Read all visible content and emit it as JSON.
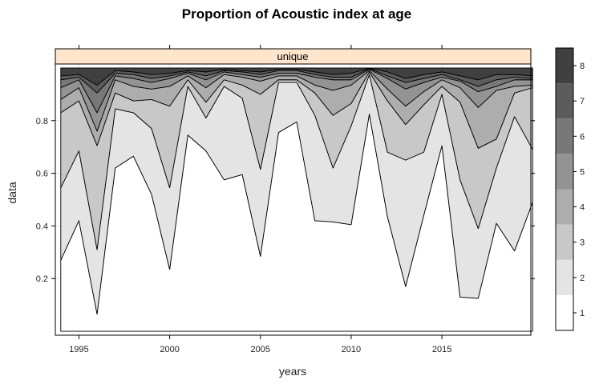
{
  "chart_data": {
    "type": "area",
    "title": "Proportion of Acoustic index at age",
    "xlabel": "years",
    "ylabel": "data",
    "panel_label": "unique",
    "xlim": [
      1993.7,
      2019.9
    ],
    "ylim": [
      -0.015,
      1.015
    ],
    "x_ticks": [
      1995,
      2000,
      2005,
      2010,
      2015
    ],
    "y_ticks": [
      0.2,
      0.4,
      0.6,
      0.8
    ],
    "x": [
      1994,
      1995,
      1996,
      1997,
      1998,
      1999,
      2000,
      2001,
      2002,
      2003,
      2004,
      2005,
      2006,
      2007,
      2008,
      2009,
      2010,
      2011,
      2012,
      2013,
      2014,
      2015,
      2016,
      2017,
      2018,
      2019,
      2020
    ],
    "cumulative": [
      [
        0.27,
        0.42,
        0.065,
        0.62,
        0.665,
        0.52,
        0.235,
        0.745,
        0.685,
        0.575,
        0.595,
        0.285,
        0.755,
        0.795,
        0.42,
        0.415,
        0.405,
        0.825,
        0.435,
        0.17,
        0.44,
        0.705,
        0.13,
        0.125,
        0.41,
        0.305,
        0.49
      ],
      [
        0.545,
        0.685,
        0.31,
        0.845,
        0.83,
        0.77,
        0.545,
        0.93,
        0.81,
        0.93,
        0.885,
        0.615,
        0.945,
        0.945,
        0.82,
        0.62,
        0.78,
        0.975,
        0.68,
        0.65,
        0.68,
        0.9,
        0.575,
        0.39,
        0.62,
        0.815,
        0.69
      ],
      [
        0.83,
        0.875,
        0.705,
        0.905,
        0.875,
        0.88,
        0.855,
        0.955,
        0.87,
        0.955,
        0.935,
        0.9,
        0.955,
        0.955,
        0.905,
        0.82,
        0.865,
        0.985,
        0.875,
        0.785,
        0.86,
        0.93,
        0.87,
        0.695,
        0.73,
        0.905,
        0.925
      ],
      [
        0.88,
        0.925,
        0.76,
        0.955,
        0.93,
        0.92,
        0.93,
        0.97,
        0.925,
        0.975,
        0.965,
        0.95,
        0.97,
        0.97,
        0.935,
        0.915,
        0.935,
        0.99,
        0.92,
        0.855,
        0.91,
        0.955,
        0.925,
        0.85,
        0.915,
        0.93,
        0.935
      ],
      [
        0.925,
        0.955,
        0.83,
        0.97,
        0.96,
        0.945,
        0.96,
        0.98,
        0.955,
        0.985,
        0.975,
        0.965,
        0.98,
        0.98,
        0.965,
        0.955,
        0.955,
        0.995,
        0.96,
        0.92,
        0.945,
        0.965,
        0.95,
        0.91,
        0.93,
        0.955,
        0.955
      ],
      [
        0.955,
        0.965,
        0.905,
        0.98,
        0.975,
        0.96,
        0.97,
        0.985,
        0.97,
        0.99,
        0.985,
        0.975,
        0.99,
        0.99,
        0.975,
        0.965,
        0.965,
        0.998,
        0.97,
        0.945,
        0.96,
        0.975,
        0.955,
        0.93,
        0.955,
        0.965,
        0.96
      ],
      [
        0.97,
        0.975,
        0.935,
        0.99,
        0.985,
        0.975,
        0.98,
        0.99,
        0.985,
        0.995,
        0.99,
        0.985,
        0.995,
        0.995,
        0.985,
        0.975,
        0.98,
        1.0,
        0.985,
        0.96,
        0.975,
        0.985,
        0.97,
        0.955,
        0.975,
        0.975,
        0.97
      ],
      [
        1,
        1,
        1,
        1,
        1,
        1,
        1,
        1,
        1,
        1,
        1,
        1,
        1,
        1,
        1,
        1,
        1,
        1,
        1,
        1,
        1,
        1,
        1,
        1,
        1,
        1,
        1
      ]
    ],
    "layers": [
      1,
      2,
      3,
      4,
      5,
      6,
      7,
      8
    ],
    "layer_colors": [
      "#ffffff",
      "#e4e4e4",
      "#c8c8c8",
      "#adadad",
      "#939393",
      "#787878",
      "#5c5c5c",
      "#404040"
    ],
    "legend": {
      "placement": "right",
      "labels": [
        "1",
        "2",
        "3",
        "4",
        "5",
        "6",
        "7",
        "8"
      ]
    },
    "grid": true
  }
}
